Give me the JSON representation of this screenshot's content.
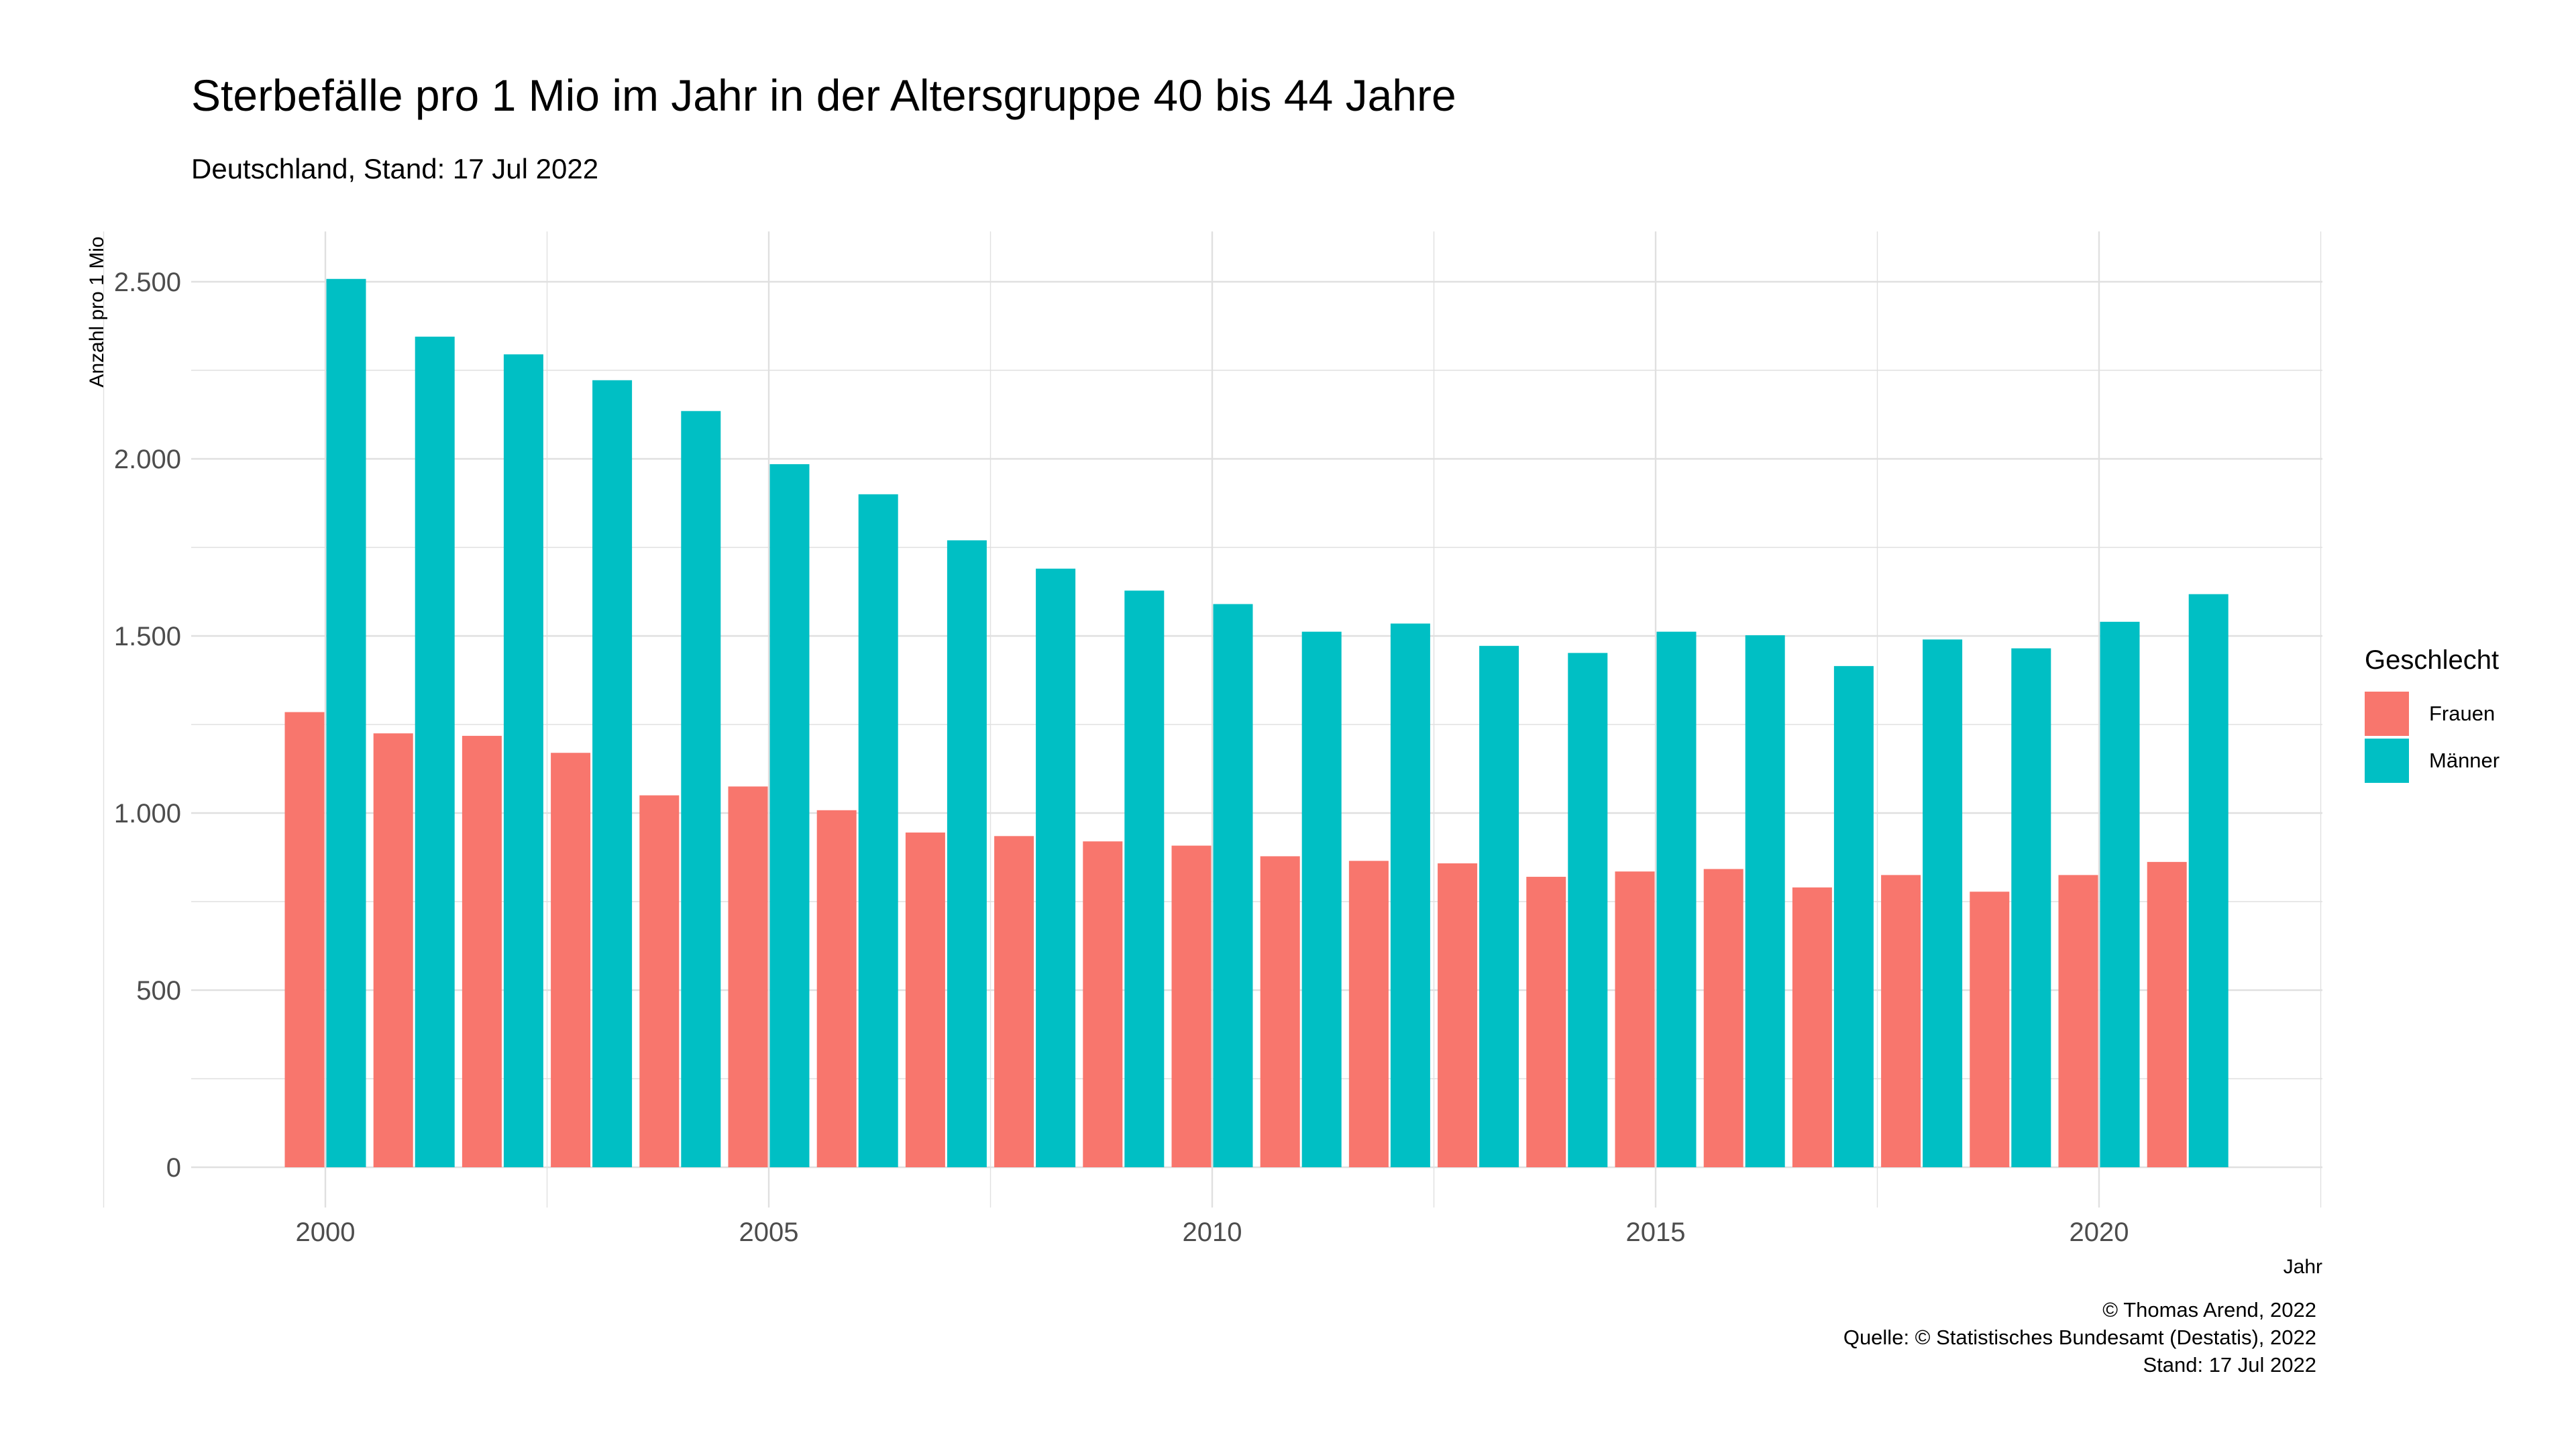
{
  "chart_data": {
    "type": "bar",
    "title": "Sterbefälle pro 1 Mio im Jahr in der Altersgruppe 40 bis 44 Jahre",
    "subtitle": "Deutschland, Stand: 17 Jul 2022",
    "xlabel": "Jahr",
    "ylabel": "Anzahl pro 1 Mio",
    "x": [
      2000,
      2001,
      2002,
      2003,
      2004,
      2005,
      2006,
      2007,
      2008,
      2009,
      2010,
      2011,
      2012,
      2013,
      2014,
      2015,
      2016,
      2017,
      2018,
      2019,
      2020,
      2021
    ],
    "x_ticks": [
      2000,
      2005,
      2010,
      2015,
      2020
    ],
    "x_tick_labels": [
      "2000",
      "2005",
      "2010",
      "2015",
      "2020"
    ],
    "y_ticks": [
      0,
      500,
      1000,
      1500,
      2000,
      2500
    ],
    "y_tick_labels": [
      "0",
      "500",
      "1.000",
      "1.500",
      "2.000",
      "2.500"
    ],
    "ylim": [
      0,
      2500
    ],
    "grid": true,
    "legend": {
      "title": "Geschlecht",
      "position": "right"
    },
    "series": [
      {
        "name": "Frauen",
        "color": "#F8766D",
        "values": [
          1285,
          1225,
          1218,
          1170,
          1050,
          1075,
          1008,
          945,
          935,
          920,
          908,
          878,
          865,
          858,
          820,
          835,
          842,
          790,
          825,
          778,
          825,
          862
        ]
      },
      {
        "name": "Männer",
        "color": "#00BFC4",
        "values": [
          2508,
          2345,
          2295,
          2222,
          2135,
          1985,
          1900,
          1770,
          1690,
          1628,
          1590,
          1512,
          1535,
          1472,
          1452,
          1512,
          1502,
          1415,
          1490,
          1465,
          1540,
          1618
        ]
      }
    ]
  },
  "caption": {
    "line1": "© Thomas Arend, 2022",
    "line2": "Quelle: © Statistisches Bundesamt (Destatis), 2022",
    "line3": "Stand: 17 Jul 2022"
  }
}
